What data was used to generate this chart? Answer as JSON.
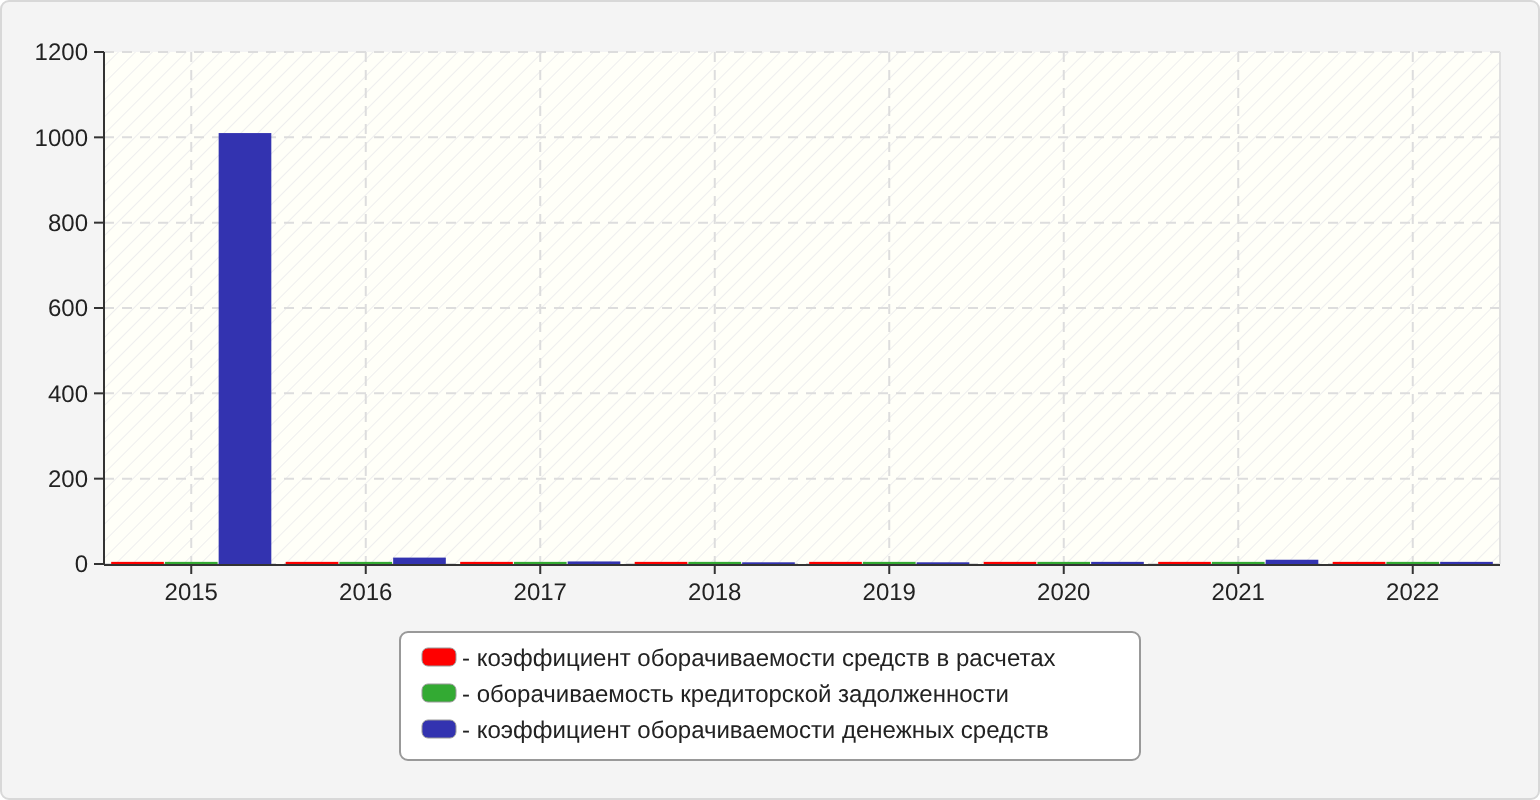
{
  "chart_data": {
    "type": "bar",
    "categories": [
      "2015",
      "2016",
      "2017",
      "2018",
      "2019",
      "2020",
      "2021",
      "2022"
    ],
    "series": [
      {
        "name": "- коэффициент оборачиваемости средств в расчетах",
        "color": "#ff0000",
        "values": [
          5,
          5,
          5,
          5,
          5,
          5,
          5,
          5
        ]
      },
      {
        "name": "- оборачиваемость кредиторской задолженности",
        "color": "#33aa33",
        "values": [
          5,
          5,
          5,
          5,
          5,
          5,
          5,
          5
        ]
      },
      {
        "name": "- коэффициент оборачиваемости денежных средств",
        "color": "#3333b0",
        "values": [
          1010,
          15,
          6,
          4,
          4,
          5,
          10,
          5
        ]
      }
    ],
    "ylim": [
      0,
      1200
    ],
    "yticks": [
      0,
      200,
      400,
      600,
      800,
      1000,
      1200
    ],
    "grid": true,
    "legend": "bottom"
  }
}
